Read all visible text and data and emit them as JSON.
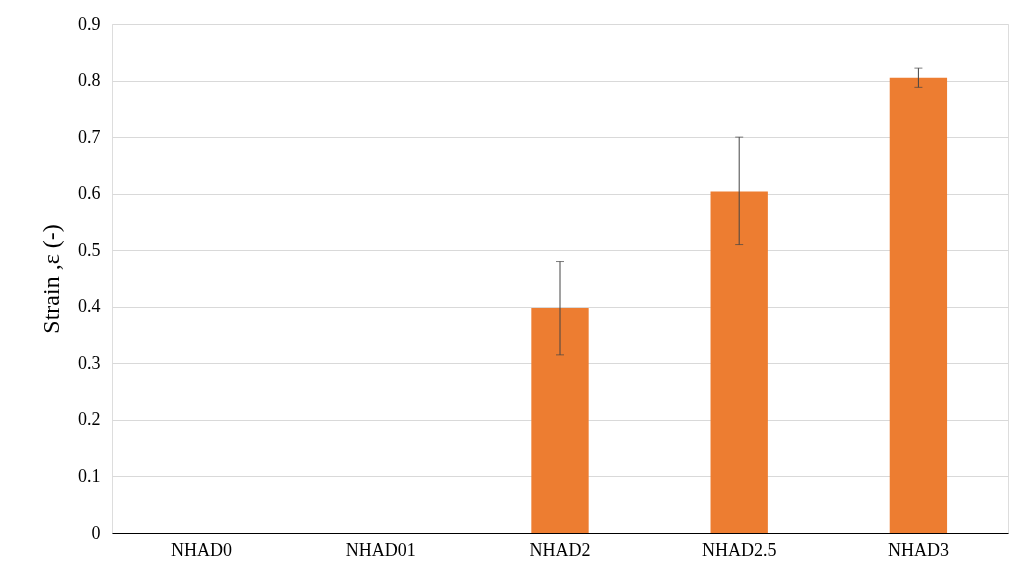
{
  "chart_data": {
    "type": "bar",
    "ylabel": "Strain ,ε (-)",
    "categories": [
      "NHAD0",
      "NHAD01",
      "NHAD2",
      "NHAD2.5",
      "NHAD3"
    ],
    "series": [
      {
        "color": "#ed7d31",
        "values": [
          null,
          null,
          0.398,
          0.604,
          0.805
        ],
        "errors": [
          null,
          null,
          [
            0.315,
            0.48
          ],
          [
            0.51,
            0.7
          ],
          [
            0.788,
            0.822
          ]
        ]
      }
    ],
    "ylim": [
      0,
      0.9
    ],
    "yticks": [
      0,
      0.1,
      0.2,
      0.3,
      0.4,
      0.5,
      0.6,
      0.7,
      0.8,
      0.9
    ],
    "grid": "y"
  }
}
